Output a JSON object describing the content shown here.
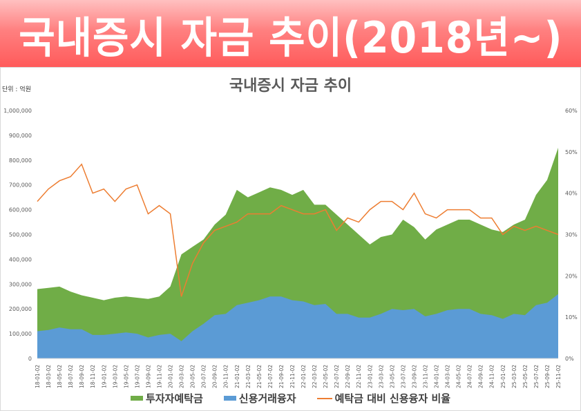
{
  "banner_title": "국내증시 자금 추이(2018년~)",
  "chart_data": {
    "type": "area",
    "title": "국내증시 자금 추이",
    "unit_label": "단위 : 억원",
    "x": [
      "18-01-02",
      "18-03-02",
      "18-05-02",
      "18-07-02",
      "18-09-02",
      "18-11-02",
      "19-01-02",
      "19-03-02",
      "19-05-02",
      "19-07-02",
      "19-09-02",
      "19-11-02",
      "20-01-02",
      "20-03-02",
      "20-05-02",
      "20-07-02",
      "20-09-02",
      "20-11-02",
      "21-01-02",
      "21-03-02",
      "21-05-02",
      "21-07-02",
      "21-09-02",
      "21-11-02",
      "22-01-02",
      "22-03-02",
      "22-05-02",
      "22-07-02",
      "22-09-02",
      "22-11-02",
      "23-01-02",
      "23-03-02",
      "23-05-02",
      "23-07-02",
      "23-09-02",
      "23-11-02",
      "24-01-02",
      "24-03-02",
      "24-05-02",
      "24-07-02",
      "24-09-02",
      "24-11-02",
      "25-01-02",
      "25-03-02",
      "25-05-02",
      "25-07-02",
      "25-09-02",
      "25-11-02"
    ],
    "y_left": {
      "min": 0,
      "max": 1000000,
      "ticks": [
        "0",
        "100,000",
        "200,000",
        "300,000",
        "400,000",
        "500,000",
        "600,000",
        "700,000",
        "800,000",
        "900,000",
        "1,000,000"
      ]
    },
    "y_right": {
      "min": 0,
      "max": 60,
      "ticks": [
        "0%",
        "10%",
        "20%",
        "30%",
        "40%",
        "50%",
        "60%"
      ]
    },
    "series": [
      {
        "name": "투자자예탁금",
        "type": "area",
        "color": "#70ad47",
        "axis": "left",
        "values": [
          280000,
          285000,
          290000,
          270000,
          255000,
          245000,
          235000,
          245000,
          250000,
          245000,
          240000,
          250000,
          290000,
          420000,
          450000,
          480000,
          540000,
          580000,
          680000,
          650000,
          670000,
          690000,
          680000,
          660000,
          680000,
          620000,
          620000,
          580000,
          540000,
          500000,
          460000,
          490000,
          500000,
          560000,
          530000,
          480000,
          520000,
          540000,
          560000,
          560000,
          540000,
          520000,
          510000,
          540000,
          560000,
          660000,
          720000,
          850000
        ]
      },
      {
        "name": "신용거래융자",
        "type": "area",
        "color": "#5b9bd5",
        "axis": "left",
        "values": [
          110000,
          115000,
          125000,
          118000,
          118000,
          95000,
          95000,
          100000,
          105000,
          100000,
          85000,
          95000,
          100000,
          70000,
          110000,
          140000,
          175000,
          180000,
          215000,
          225000,
          235000,
          250000,
          250000,
          235000,
          230000,
          215000,
          220000,
          180000,
          180000,
          165000,
          165000,
          180000,
          200000,
          195000,
          200000,
          170000,
          180000,
          195000,
          200000,
          200000,
          180000,
          175000,
          160000,
          180000,
          175000,
          215000,
          225000,
          260000
        ]
      },
      {
        "name": "예탁금 대비 신용융자 비율",
        "type": "line",
        "color": "#ed7d31",
        "axis": "right",
        "values": [
          38,
          41,
          43,
          44,
          47,
          40,
          41,
          38,
          41,
          42,
          35,
          37,
          35,
          15,
          23,
          28,
          31,
          32,
          33,
          35,
          35,
          35,
          37,
          36,
          35,
          35,
          36,
          31,
          34,
          33,
          36,
          38,
          38,
          36,
          40,
          35,
          34,
          36,
          36,
          36,
          34,
          34,
          30,
          32,
          31,
          32,
          31,
          30
        ]
      }
    ],
    "grid": false,
    "legend": "bottom"
  }
}
